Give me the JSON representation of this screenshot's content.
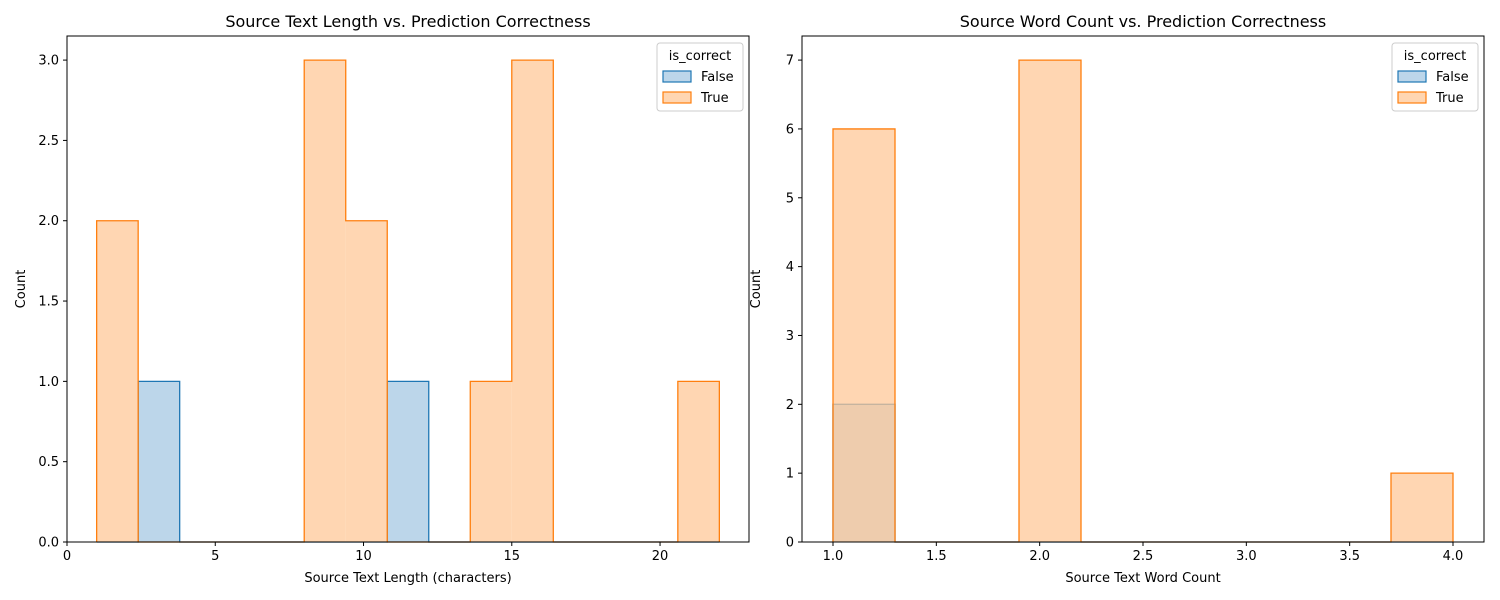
{
  "chart_data": [
    {
      "type": "histogram",
      "title": "Source Text Length vs. Prediction Correctness",
      "xlabel": "Source Text Length (characters)",
      "ylabel": "Count",
      "xlim": [
        0,
        23
      ],
      "ylim": [
        0,
        3.15
      ],
      "xticks": [
        0,
        5,
        10,
        15,
        20
      ],
      "xtick_labels": [
        "0",
        "5",
        "10",
        "15",
        "20"
      ],
      "yticks": [
        0,
        0.5,
        1,
        1.5,
        2,
        2.5,
        3
      ],
      "ytick_labels": [
        "0.0",
        "0.5",
        "1.0",
        "1.5",
        "2.0",
        "2.5",
        "3.0"
      ],
      "bin_edges": [
        1.0,
        2.4,
        3.8,
        5.2,
        6.6,
        8.0,
        9.4,
        10.8,
        12.2,
        13.6,
        15.0,
        16.4,
        17.8,
        19.2,
        20.6,
        22.0
      ],
      "series": [
        {
          "name": "False",
          "values": [
            0,
            1,
            0,
            0,
            0,
            0,
            0,
            1,
            0,
            0,
            0,
            0,
            0,
            0,
            0
          ],
          "color": "#1f77b4",
          "fill": "#a6c8e3"
        },
        {
          "name": "True",
          "values": [
            2,
            0,
            0,
            0,
            0,
            3,
            2,
            0,
            0,
            1,
            3,
            0,
            0,
            0,
            1
          ],
          "color": "#ff7f0e",
          "fill": "#ffc898"
        }
      ],
      "legend": {
        "title": "is_correct",
        "position": "top-right"
      }
    },
    {
      "type": "histogram",
      "title": "Source Word Count vs. Prediction Correctness",
      "xlabel": "Source Text Word Count",
      "ylabel": "Count",
      "xlim": [
        0.85,
        4.15
      ],
      "ylim": [
        0,
        7.35
      ],
      "xticks": [
        1.0,
        1.5,
        2.0,
        2.5,
        3.0,
        3.5,
        4.0
      ],
      "xtick_labels": [
        "1.0",
        "1.5",
        "2.0",
        "2.5",
        "3.0",
        "3.5",
        "4.0"
      ],
      "yticks": [
        0,
        1,
        2,
        3,
        4,
        5,
        6,
        7
      ],
      "ytick_labels": [
        "0",
        "1",
        "2",
        "3",
        "4",
        "5",
        "6",
        "7"
      ],
      "bin_edges": [
        1.0,
        1.3,
        1.6,
        1.9,
        2.2,
        2.5,
        2.8,
        3.1,
        3.4,
        3.7,
        4.0
      ],
      "series": [
        {
          "name": "False",
          "values": [
            2,
            0,
            0,
            0,
            0,
            0,
            0,
            0,
            0,
            0
          ],
          "color": "#1f77b4",
          "fill": "#a6c8e3"
        },
        {
          "name": "True",
          "values": [
            6,
            0,
            0,
            7,
            0,
            0,
            0,
            0,
            0,
            1
          ],
          "color": "#ff7f0e",
          "fill": "#ffc898"
        }
      ],
      "legend": {
        "title": "is_correct",
        "position": "top-right"
      }
    }
  ]
}
